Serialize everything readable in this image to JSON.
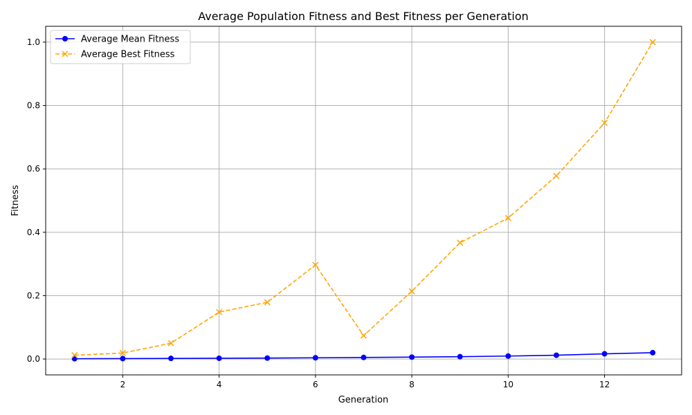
{
  "chart_data": {
    "type": "line",
    "title": "Average Population Fitness and Best Fitness per Generation",
    "xlabel": "Generation",
    "ylabel": "Fitness",
    "xlim": [
      0.4,
      13.6
    ],
    "ylim": [
      -0.05,
      1.05
    ],
    "xticks": [
      2,
      4,
      6,
      8,
      10,
      12
    ],
    "yticks": [
      0.0,
      0.2,
      0.4,
      0.6,
      0.8,
      1.0
    ],
    "xtick_labels": [
      "2",
      "4",
      "6",
      "8",
      "10",
      "12"
    ],
    "ytick_labels": [
      "0.0",
      "0.2",
      "0.4",
      "0.6",
      "0.8",
      "1.0"
    ],
    "grid": true,
    "legend_position": "top-left",
    "x": [
      1,
      2,
      3,
      4,
      5,
      6,
      7,
      8,
      9,
      10,
      11,
      12,
      13
    ],
    "series": [
      {
        "name": "Average Mean Fitness",
        "color": "#0000ff",
        "line_style": "solid",
        "marker": "circle",
        "values": [
          0.001,
          0.0015,
          0.002,
          0.0025,
          0.003,
          0.004,
          0.005,
          0.006,
          0.0075,
          0.0095,
          0.012,
          0.0165,
          0.02
        ]
      },
      {
        "name": "Average Best Fitness",
        "color": "#ffa500",
        "line_style": "dashed",
        "marker": "x",
        "values": [
          0.012,
          0.019,
          0.05,
          0.148,
          0.179,
          0.297,
          0.074,
          0.214,
          0.367,
          0.445,
          0.578,
          0.745,
          1.0
        ]
      }
    ]
  }
}
